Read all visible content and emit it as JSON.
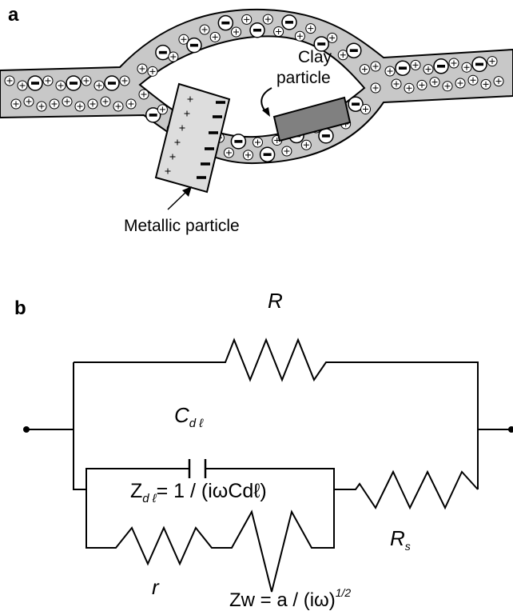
{
  "panel_a": {
    "label": "a",
    "clay_particle": [
      "Clay",
      "particle"
    ],
    "metallic_particle": "Metallic particle"
  },
  "panel_b": {
    "label": "b",
    "R": "R",
    "C_dl": {
      "main": "C",
      "sub": "d ℓ"
    },
    "Z_dl": {
      "main": "Z",
      "sub": "d ℓ",
      "expression": "= 1 / (iωCdℓ)"
    },
    "r": "r",
    "R_s": {
      "main": "R",
      "sub": "s"
    },
    "Zw": {
      "main": "Zw = a / (iω)",
      "sup": "1/2"
    }
  }
}
